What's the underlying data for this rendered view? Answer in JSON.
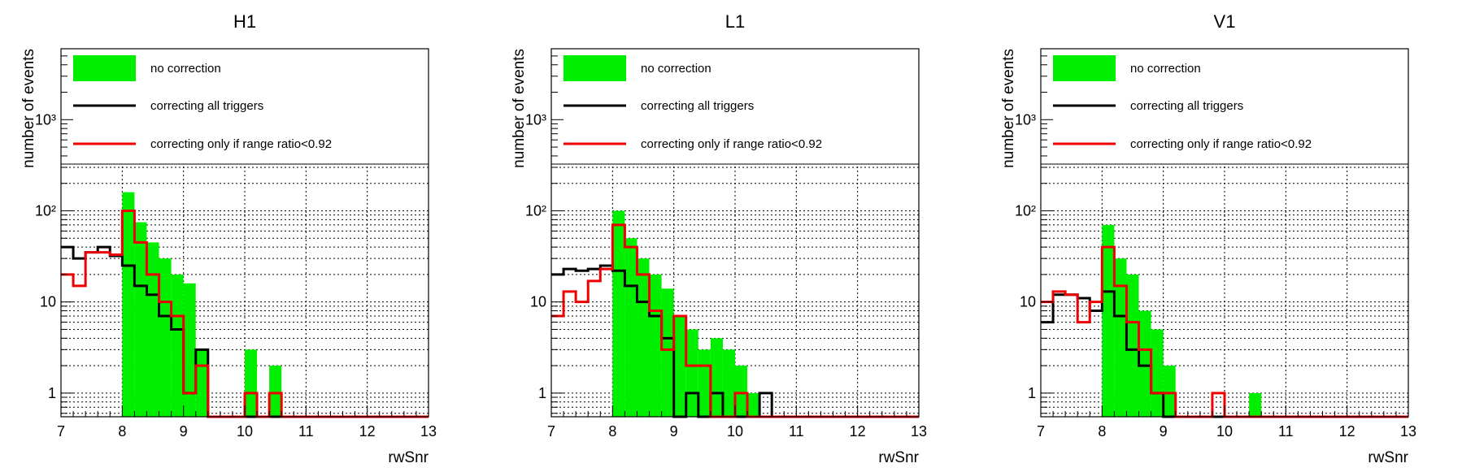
{
  "legend": {
    "entries": [
      {
        "label": "no correction",
        "color": "#00ee00",
        "kind": "fill"
      },
      {
        "label": "correcting all triggers",
        "color": "#000000",
        "kind": "line"
      },
      {
        "label": "correcting only if range ratio<0.92",
        "color": "#ee0000",
        "kind": "line"
      }
    ]
  },
  "chart_data": [
    {
      "type": "histogram",
      "title": "H1",
      "xlabel": "rwSnr",
      "ylabel": "number of events",
      "xlim": [
        7,
        13
      ],
      "ylim": [
        0.55,
        6000
      ],
      "log_y": true,
      "grid": true,
      "legend_position": "top",
      "bin_width": 0.2,
      "x_ticks": [
        7,
        8,
        9,
        10,
        11,
        12,
        13
      ],
      "y_ticks": [
        {
          "value": 1,
          "label": "1"
        },
        {
          "value": 10,
          "label": "10"
        },
        {
          "value": 100,
          "label": "10²"
        },
        {
          "value": 1000,
          "label": "10³"
        }
      ],
      "series": [
        {
          "name": "no correction",
          "values": [
            0,
            0,
            0,
            0,
            0,
            160,
            75,
            45,
            30,
            20,
            16,
            3,
            0,
            0,
            0,
            3,
            0,
            2,
            0,
            0,
            0,
            0,
            0,
            0,
            0,
            0,
            0,
            0,
            0,
            0
          ]
        },
        {
          "name": "correcting all triggers",
          "values": [
            40,
            30,
            35,
            40,
            32,
            25,
            15,
            12,
            7,
            5,
            1,
            3,
            0,
            0,
            0,
            0,
            0,
            0,
            0,
            0,
            0,
            0,
            0,
            0,
            0,
            0,
            0,
            0,
            0,
            0
          ]
        },
        {
          "name": "correcting only if range ratio<0.92",
          "values": [
            20,
            15,
            35,
            35,
            33,
            100,
            45,
            20,
            10,
            7,
            1,
            2,
            0,
            0,
            0,
            1,
            0,
            1,
            0,
            0,
            0,
            0,
            0,
            0,
            0,
            0,
            0,
            0,
            0,
            0
          ]
        }
      ]
    },
    {
      "type": "histogram",
      "title": "L1",
      "xlabel": "rwSnr",
      "ylabel": "number of events",
      "xlim": [
        7,
        13
      ],
      "ylim": [
        0.55,
        6000
      ],
      "log_y": true,
      "grid": true,
      "legend_position": "top",
      "bin_width": 0.2,
      "x_ticks": [
        7,
        8,
        9,
        10,
        11,
        12,
        13
      ],
      "y_ticks": [
        {
          "value": 1,
          "label": "1"
        },
        {
          "value": 10,
          "label": "10"
        },
        {
          "value": 100,
          "label": "10²"
        },
        {
          "value": 1000,
          "label": "10³"
        }
      ],
      "series": [
        {
          "name": "no correction",
          "values": [
            0,
            0,
            0,
            0,
            0,
            100,
            50,
            30,
            20,
            14,
            7,
            5,
            3,
            4,
            3,
            2,
            1,
            0,
            0,
            0,
            0,
            0,
            0,
            0,
            0,
            0,
            0,
            0,
            0,
            0
          ]
        },
        {
          "name": "correcting all triggers",
          "values": [
            20,
            23,
            22,
            23,
            25,
            22,
            15,
            10,
            7,
            4,
            0,
            1,
            0,
            1,
            0,
            0,
            0,
            1,
            0,
            0,
            0,
            0,
            0,
            0,
            0,
            0,
            0,
            0,
            0,
            0
          ]
        },
        {
          "name": "correcting only if range ratio<0.92",
          "values": [
            7,
            13,
            10,
            17,
            23,
            70,
            40,
            20,
            8,
            3,
            7,
            2,
            2,
            0,
            0,
            1,
            0,
            0,
            0,
            0,
            0,
            0,
            0,
            0,
            0,
            0,
            0,
            0,
            0,
            0
          ]
        }
      ]
    },
    {
      "type": "histogram",
      "title": "V1",
      "xlabel": "rwSnr",
      "ylabel": "number of events",
      "xlim": [
        7,
        13
      ],
      "ylim": [
        0.55,
        6000
      ],
      "log_y": true,
      "grid": true,
      "legend_position": "top",
      "bin_width": 0.2,
      "x_ticks": [
        7,
        8,
        9,
        10,
        11,
        12,
        13
      ],
      "y_ticks": [
        {
          "value": 1,
          "label": "1"
        },
        {
          "value": 10,
          "label": "10"
        },
        {
          "value": 100,
          "label": "10²"
        },
        {
          "value": 1000,
          "label": "10³"
        }
      ],
      "series": [
        {
          "name": "no correction",
          "values": [
            0,
            0,
            0,
            0,
            0,
            70,
            30,
            20,
            8,
            5,
            2,
            0,
            0,
            0,
            0,
            0,
            0,
            1,
            0,
            0,
            0,
            0,
            0,
            0,
            0,
            0,
            0,
            0,
            0,
            0
          ]
        },
        {
          "name": "correcting all triggers",
          "values": [
            6,
            12,
            12,
            11,
            8,
            13,
            7,
            3,
            2,
            1,
            0,
            0,
            0,
            0,
            0,
            0,
            0,
            0,
            0,
            0,
            0,
            0,
            0,
            0,
            0,
            0,
            0,
            0,
            0,
            0
          ]
        },
        {
          "name": "correcting only if range ratio<0.92",
          "values": [
            10,
            13,
            12,
            6,
            10,
            40,
            15,
            6,
            3,
            1,
            1,
            0,
            0,
            0,
            1,
            0,
            0,
            0,
            0,
            0,
            0,
            0,
            0,
            0,
            0,
            0,
            0,
            0,
            0,
            0
          ]
        }
      ]
    }
  ]
}
